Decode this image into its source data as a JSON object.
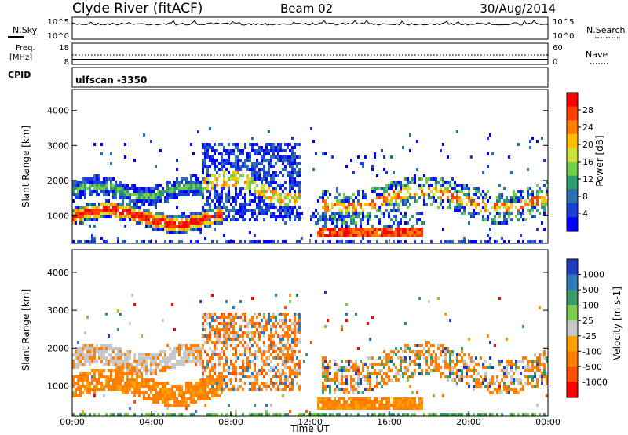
{
  "header": {
    "station": "Clyde River (fitACF)",
    "beam": "Beam 02",
    "date": "30/Aug/2014"
  },
  "top_panels": {
    "nsky_label": "N.Sky",
    "nsky_ticks": [
      "10^5",
      "10^0"
    ],
    "nsearch_label": "N.Search",
    "nsearch_ticks": [
      "10^5",
      "10^0"
    ],
    "freq_label": "Freq.",
    "freq_unit": "[MHz]",
    "freq_ticks": [
      "18",
      "8"
    ],
    "nave_label": "Nave",
    "nave_ticks": [
      "60",
      "0"
    ],
    "cpid_label": "CPID",
    "cpid_value": "ulfscan -3350"
  },
  "chart_data": [
    {
      "type": "heatmap",
      "name": "power",
      "ylabel": "Slant Range [km]",
      "yticks": [
        "4000",
        "3000",
        "2000",
        "1000"
      ],
      "ylim": [
        200,
        4600
      ],
      "colorbar": {
        "label": "Power [dB]",
        "ticks": [
          "28",
          "24",
          "20",
          "16",
          "12",
          "8",
          "4"
        ],
        "colors": [
          "#ff0000",
          "#ff4000",
          "#ff7f00",
          "#ffbf00",
          "#cfe03a",
          "#6fcf4a",
          "#2e9e6e",
          "#2a6fb0",
          "#1a3ed8",
          "#0000ff"
        ]
      },
      "bands": [
        {
          "time_h": [
            0,
            6
          ],
          "range_km": [
            1500,
            2300
          ],
          "level": "low"
        },
        {
          "time_h": [
            0,
            7
          ],
          "range_km": [
            700,
            1300
          ],
          "level": "high"
        },
        {
          "time_h": [
            7,
            11.5
          ],
          "range_km": [
            1000,
            3000
          ],
          "level": "mixed"
        },
        {
          "time_h": [
            12.5,
            17.5
          ],
          "range_km": [
            400,
            700
          ],
          "level": "high"
        },
        {
          "time_h": [
            13,
            24
          ],
          "range_km": [
            800,
            2100
          ],
          "level": "mixed"
        }
      ]
    },
    {
      "type": "heatmap",
      "name": "velocity",
      "ylabel": "Slant Range [km]",
      "yticks": [
        "4000",
        "3000",
        "2000",
        "1000"
      ],
      "ylim": [
        200,
        4600
      ],
      "colorbar": {
        "label": "Velocity [m s-1]",
        "ticks": [
          "1000",
          "500",
          "100",
          "25",
          "-25",
          "-100",
          "-500",
          "-1000"
        ],
        "colors": [
          "#1f3fbf",
          "#2e7ab8",
          "#3a9a6a",
          "#7acc4a",
          "#c8c8c8",
          "#ffa000",
          "#ff7f00",
          "#ff5000",
          "#ff0000"
        ]
      },
      "xlabel": "Time UT",
      "xticks": [
        "00:00",
        "04:00",
        "08:00",
        "12:00",
        "16:00",
        "20:00",
        "00:00"
      ]
    }
  ]
}
